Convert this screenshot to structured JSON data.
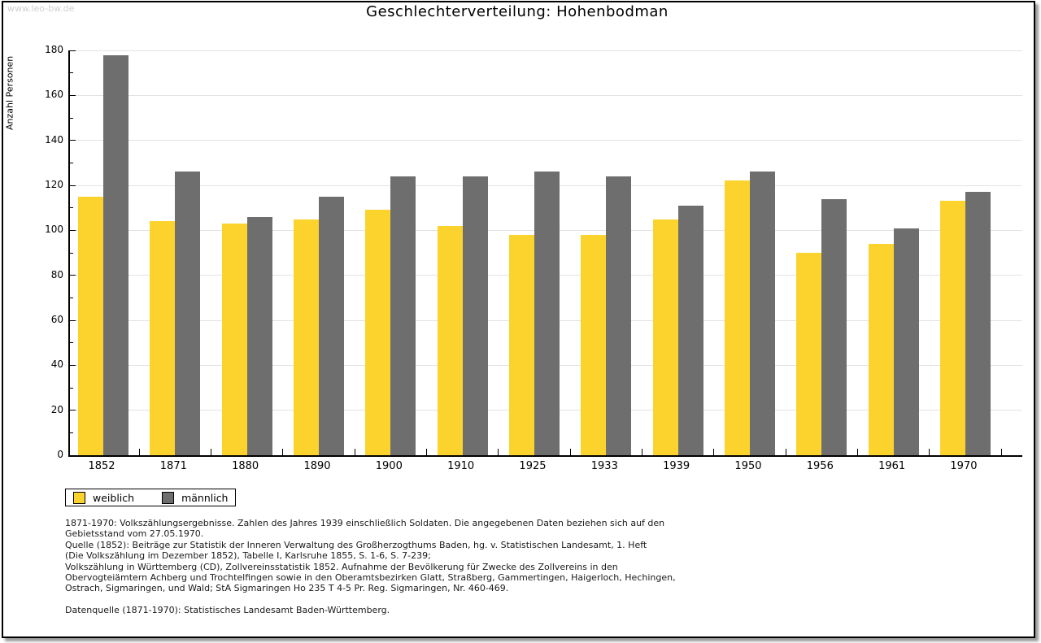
{
  "watermark": "www.leo-bw.de",
  "title": "Geschlechterverteilung: Hohenbodman",
  "chart_data": {
    "type": "bar",
    "title": "Geschlechterverteilung: Hohenbodman",
    "xlabel": "",
    "ylabel": "Anzahl Personen",
    "ylim": [
      0,
      180
    ],
    "ytick_step": 20,
    "minor_tick_step": 10,
    "grid": true,
    "legend_position": "bottom-left",
    "categories": [
      "1852",
      "1871",
      "1880",
      "1890",
      "1900",
      "1910",
      "1925",
      "1933",
      "1939",
      "1950",
      "1956",
      "1961",
      "1970"
    ],
    "series": [
      {
        "name": "weiblich",
        "color": "#FCD32D",
        "values": [
          115,
          104,
          103,
          105,
          109,
          102,
          98,
          98,
          105,
          122,
          90,
          94,
          113
        ]
      },
      {
        "name": "männlich",
        "color": "#6E6E6E",
        "values": [
          178,
          126,
          106,
          115,
          124,
          124,
          126,
          124,
          111,
          126,
          114,
          101,
          117
        ]
      }
    ]
  },
  "legend": {
    "items": [
      {
        "label": "weiblich",
        "color": "#FCD32D"
      },
      {
        "label": "männlich",
        "color": "#6E6E6E"
      }
    ]
  },
  "footnotes": {
    "lines": [
      "1871-1970: Volkszählungsergebnisse. Zahlen des Jahres 1939 einschließlich Soldaten. Die angegebenen Daten beziehen sich auf den",
      "Gebietsstand vom 27.05.1970.",
      "Quelle (1852): Beiträge zur Statistik der Inneren Verwaltung des Großherzogthums Baden, hg. v. Statistischen Landesamt, 1. Heft",
      "(Die Volkszählung im Dezember 1852), Tabelle I, Karlsruhe 1855, S. 1-6, S. 7-239;",
      "Volkszählung in Württemberg (CD), Zollvereinsstatistik 1852. Aufnahme der Bevölkerung für Zwecke des Zollvereins in den",
      "Obervogteiämtern Achberg und Trochtelfingen sowie in den Oberamtsbezirken Glatt, Straßberg, Gammertingen, Haigerloch, Hechingen,",
      "Ostrach, Sigmaringen, und Wald; StA Sigmaringen Ho 235 T 4-5 Pr. Reg. Sigmaringen, Nr. 460-469."
    ],
    "datasource": "Datenquelle (1871-1970): Statistisches Landesamt Baden-Württemberg."
  },
  "colors": {
    "background": "#FFFFFF",
    "frame_border": "#000000",
    "gridline": "#E2E2E2",
    "watermark": "#CFCFCF",
    "text": "#000000"
  }
}
